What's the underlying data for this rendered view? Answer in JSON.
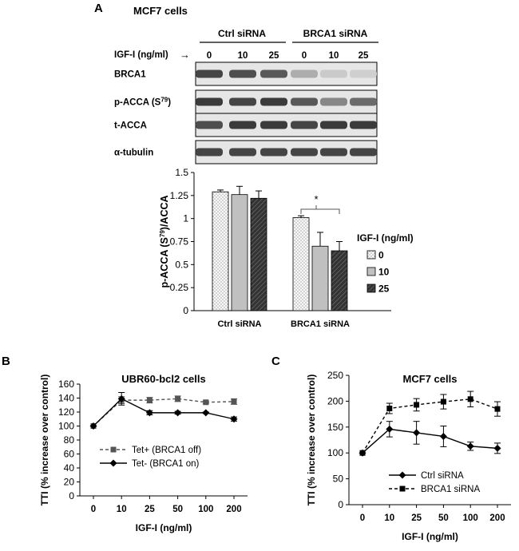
{
  "panel_a": {
    "letter": "A",
    "title": "MCF7 cells",
    "groups": [
      "Ctrl siRNA",
      "BRCA1 siRNA"
    ],
    "treatment_label": "IGF-I (ng/ml)",
    "arrow": "→",
    "lane_doses": [
      "0",
      "10",
      "25",
      "0",
      "10",
      "25"
    ],
    "blots": [
      {
        "label": "BRCA1",
        "intensity": [
          0.85,
          0.8,
          0.75,
          0.3,
          0.15,
          0.12
        ]
      },
      {
        "label_main": "p-ACCA (S",
        "label_sup": "79",
        "label_tail": ")",
        "intensity": [
          0.9,
          0.85,
          0.9,
          0.75,
          0.5,
          0.65
        ]
      },
      {
        "label": "t-ACCA",
        "intensity": [
          0.8,
          0.9,
          0.9,
          0.85,
          0.9,
          0.9
        ]
      },
      {
        "label": "α-tubulin",
        "intensity": [
          0.85,
          0.85,
          0.85,
          0.85,
          0.85,
          0.85
        ]
      }
    ]
  },
  "chart_data": [
    {
      "id": "A-bar",
      "type": "bar",
      "title": "",
      "ylabel_main": "p-ACCA (S",
      "ylabel_sup": "79",
      "ylabel_tail": ")/ACCA",
      "xlabel": "",
      "categories": [
        "Ctrl siRNA",
        "BRCA1 siRNA"
      ],
      "ylim": [
        0,
        1.5
      ],
      "yticks": [
        "0",
        "0.25",
        "0.5",
        "0.75",
        "1",
        "1.25",
        "1.5"
      ],
      "series": [
        {
          "name": "0",
          "values": [
            1.29,
            1.01
          ],
          "errors": [
            0.02,
            0.02
          ],
          "fill": "#f4f4f4",
          "pattern": "dots"
        },
        {
          "name": "10",
          "values": [
            1.26,
            0.7
          ],
          "errors": [
            0.09,
            0.15
          ],
          "fill": "#c0c0c0",
          "pattern": "none"
        },
        {
          "name": "25",
          "values": [
            1.22,
            0.65
          ],
          "errors": [
            0.08,
            0.1
          ],
          "fill": "#404040",
          "pattern": "hatch"
        }
      ],
      "legend_title": "IGF-I (ng/ml)",
      "legend_position": "right",
      "annotation": "*"
    },
    {
      "id": "B-line",
      "type": "line",
      "letter": "B",
      "title": "UBR60-bcl2 cells",
      "ylabel": "TTI (% increase over control)",
      "xlabel": "IGF-I (ng/ml)",
      "categories": [
        "0",
        "10",
        "25",
        "50",
        "100",
        "200"
      ],
      "ylim": [
        0,
        160
      ],
      "yticks": [
        "0",
        "20",
        "40",
        "60",
        "80",
        "100",
        "120",
        "140",
        "160"
      ],
      "series": [
        {
          "name": "Tet+ (BRCA1 off)",
          "values": [
            100,
            137,
            137,
            139,
            134,
            135
          ],
          "errors": [
            0,
            5,
            4,
            4,
            2,
            4
          ],
          "dash": true,
          "marker": "square",
          "color": "#555555"
        },
        {
          "name": "Tet- (BRCA1 on)",
          "values": [
            100,
            139,
            119,
            119,
            119,
            110
          ],
          "errors": [
            0,
            9,
            3,
            2,
            1,
            3
          ],
          "dash": false,
          "marker": "diamond",
          "color": "#000000"
        }
      ],
      "legend_position": "bottom-right"
    },
    {
      "id": "C-line",
      "type": "line",
      "letter": "C",
      "title": "MCF7 cells",
      "ylabel": "TTI (% increase over control)",
      "xlabel": "IGF-I (ng/ml)",
      "categories": [
        "0",
        "10",
        "25",
        "50",
        "100",
        "200"
      ],
      "ylim": [
        0,
        250
      ],
      "yticks": [
        "0",
        "50",
        "100",
        "150",
        "200",
        "250"
      ],
      "series": [
        {
          "name": "Ctrl siRNA",
          "values": [
            100,
            146,
            139,
            132,
            113,
            109
          ],
          "errors": [
            0,
            15,
            22,
            20,
            8,
            10
          ],
          "dash": false,
          "marker": "diamond",
          "color": "#000000"
        },
        {
          "name": "BRCA1 siRNA",
          "values": [
            100,
            186,
            193,
            199,
            204,
            185
          ],
          "errors": [
            0,
            10,
            12,
            14,
            15,
            14
          ],
          "dash": true,
          "marker": "square",
          "color": "#000000"
        }
      ],
      "legend_position": "bottom-right"
    }
  ]
}
